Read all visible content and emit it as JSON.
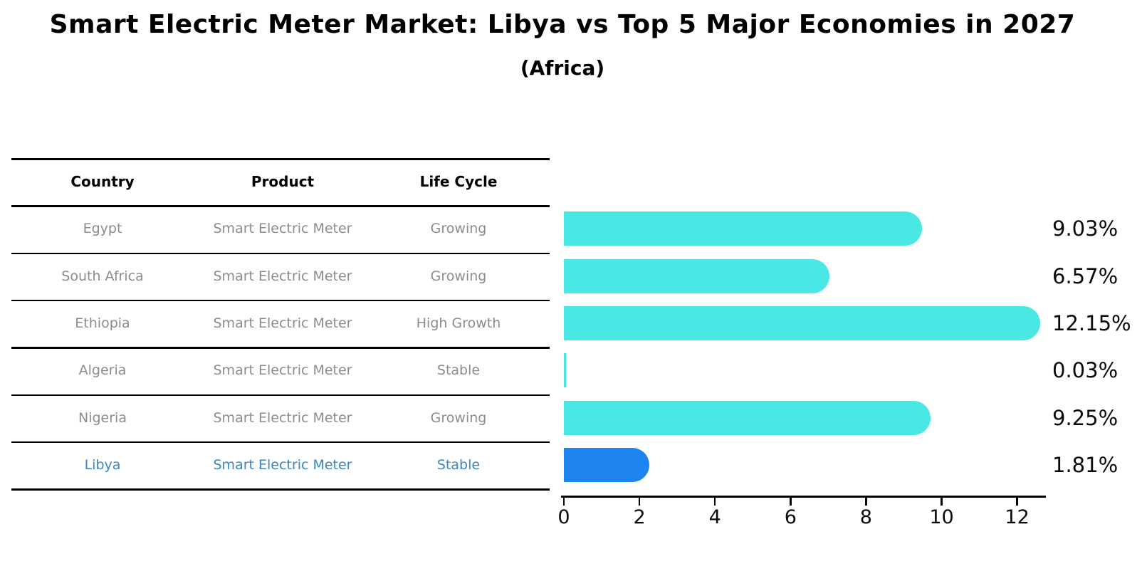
{
  "title": "Smart Electric Meter Market: Libya vs Top 5 Major Economies in 2027",
  "subtitle": "(Africa)",
  "table": {
    "headers": [
      "Country",
      "Product",
      "Life Cycle"
    ],
    "rows": [
      {
        "country": "Egypt",
        "product": "Smart Electric Meter",
        "life_cycle": "Growing",
        "highlighted": false
      },
      {
        "country": "South Africa",
        "product": "Smart Electric Meter",
        "life_cycle": "Growing",
        "highlighted": false
      },
      {
        "country": "Ethiopia",
        "product": "Smart Electric Meter",
        "life_cycle": "High Growth",
        "highlighted": false
      },
      {
        "country": "Algeria",
        "product": "Smart Electric Meter",
        "life_cycle": "Stable",
        "highlighted": false
      },
      {
        "country": "Nigeria",
        "product": "Smart Electric Meter",
        "life_cycle": "Growing",
        "highlighted": false
      },
      {
        "country": "Libya",
        "product": "Smart Electric Meter",
        "life_cycle": "Stable",
        "highlighted": true
      }
    ]
  },
  "chart_data": {
    "type": "bar",
    "orientation": "horizontal",
    "title": "Smart Electric Meter Market: Libya vs Top 5 Major Economies in 2027",
    "subtitle": "(Africa)",
    "categories": [
      "Egypt",
      "South Africa",
      "Ethiopia",
      "Algeria",
      "Nigeria",
      "Libya"
    ],
    "values": [
      9.03,
      6.57,
      12.15,
      0.03,
      9.25,
      1.81
    ],
    "value_labels": [
      "9.03%",
      "6.57%",
      "12.15%",
      "0.03%",
      "9.25%",
      "1.81%"
    ],
    "xticks": [
      0,
      2,
      4,
      6,
      8,
      10,
      12
    ],
    "xlim": [
      0,
      12.8
    ],
    "xlabel": "",
    "ylabel": "",
    "grid": false,
    "legend": false,
    "bar_color": "#49E8E4",
    "highlight_bar_color": "#1E84F0",
    "highlight_index": 5,
    "row_text_color": "#8C8C8C",
    "highlight_text_color": "#3A85C5",
    "axis_color": "#000000",
    "value_label_color": "#0a0a0a"
  }
}
